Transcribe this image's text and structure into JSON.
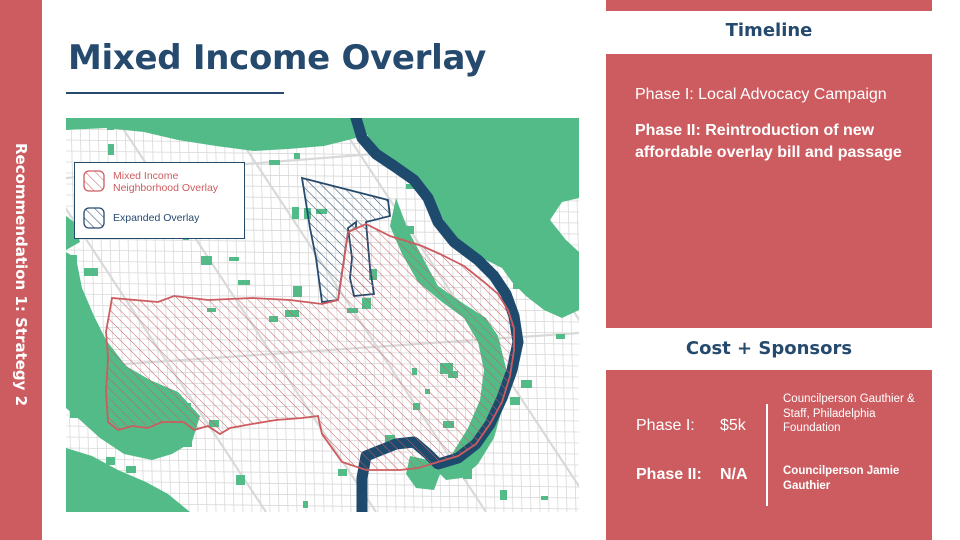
{
  "sidebar": {
    "label": "Recommendation 1: Strategy 2",
    "color": "#cd5c60"
  },
  "title": "Mixed Income Overlay",
  "map": {
    "legend": {
      "mixed_income": "Mixed Income Neighborhood Overlay",
      "expanded": "Expanded Overlay"
    },
    "colors": {
      "park": "#52bb87",
      "river": "#1e4a6e",
      "street": "#d9d9d9",
      "mixed_income_overlay": "#cd5c60",
      "expanded_overlay": "#264a6e"
    }
  },
  "timeline": {
    "heading": "Timeline",
    "phase_one": "Phase I: Local Advocacy Campaign",
    "phase_two": "Phase II: Reintroduction of new affordable overlay bill and passage"
  },
  "cost_sponsors": {
    "heading": "Cost + Sponsors",
    "rows": [
      {
        "phase": "Phase I:",
        "cost": "$5k",
        "sponsor": "Councilperson Gauthier & Staff, Philadelphia Foundation"
      },
      {
        "phase": "Phase II:",
        "cost": "N/A",
        "sponsor": "Councilperson Jamie Gauthier"
      }
    ]
  }
}
